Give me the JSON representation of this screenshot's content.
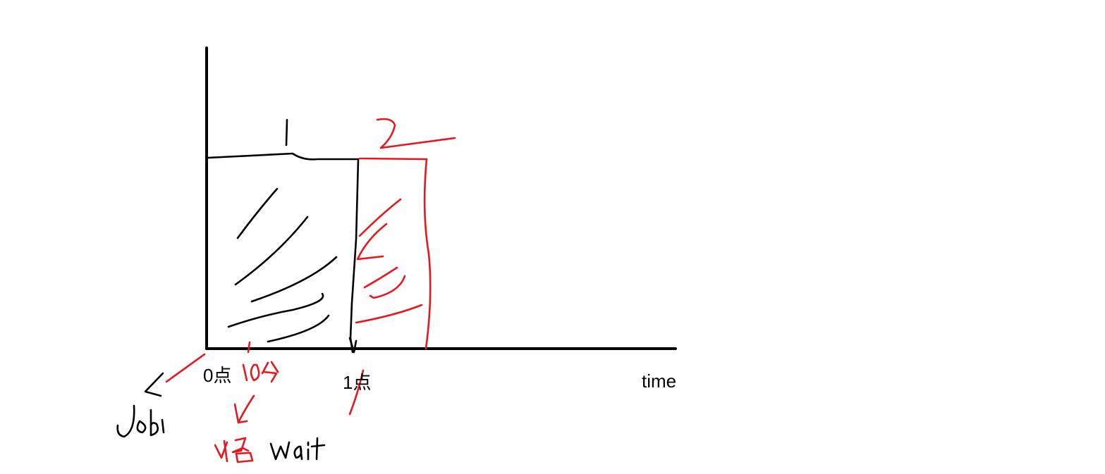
{
  "labels": {
    "origin": "0点",
    "mark_one": "1点",
    "axis_x": "time"
  },
  "handwriting": {
    "block_one_number": "1",
    "block_two_number": "2",
    "job_note": "Job1",
    "minute_note": "10分",
    "wait_note": "wait"
  },
  "colors": {
    "ink": "#000000",
    "red_ink": "#e8161d",
    "background": "#ffffff"
  }
}
